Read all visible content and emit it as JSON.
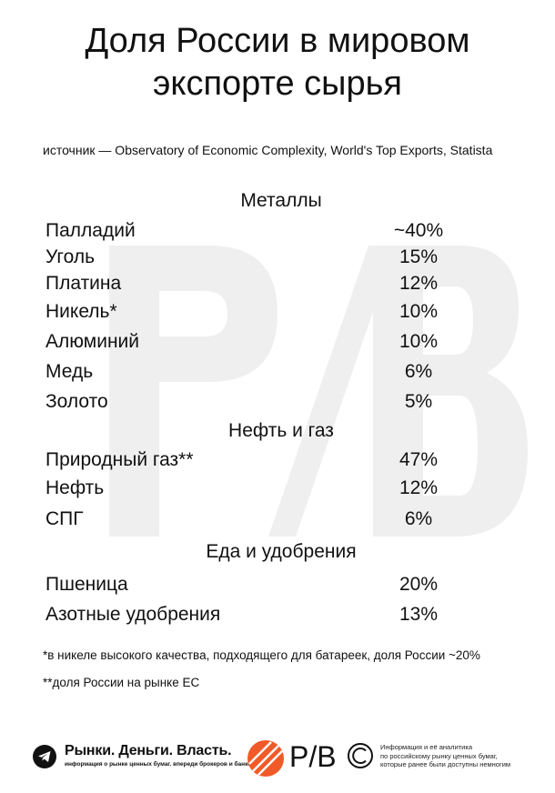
{
  "title_lines": [
    "Доля России в мировом",
    "экспорте сырья"
  ],
  "source": "источник — Observatory of Economic Complexity, World's Top Exports, Statista",
  "sections": [
    {
      "heading": "Металлы",
      "rows": [
        {
          "name": "Палладий",
          "value": "~40%"
        },
        {
          "name": "Уголь",
          "value": "15%"
        },
        {
          "name": "Платина",
          "value": "12%"
        },
        {
          "name": "Никель*",
          "value": "10%"
        },
        {
          "name": "Алюминий",
          "value": "10%"
        },
        {
          "name": "Медь",
          "value": "6%"
        },
        {
          "name": "Золото",
          "value": "5%"
        }
      ]
    },
    {
      "heading": "Нефть и газ",
      "rows": [
        {
          "name": "Природный газ**",
          "value": "47%"
        },
        {
          "name": "Нефть",
          "value": "12%"
        },
        {
          "name": "СПГ",
          "value": "6%"
        }
      ]
    },
    {
      "heading": "Еда и удобрения",
      "rows": [
        {
          "name": "Пшеница",
          "value": "20%"
        },
        {
          "name": "Азотные удобрения",
          "value": "13%"
        }
      ]
    }
  ],
  "notes": [
    "*в никеле высокого качества, подходящего для батареек, доля России ~20%",
    "**доля России на рынке ЕС"
  ],
  "footer": {
    "brand_title": "Рынки. Деньги. Власть.",
    "brand_subtitle": "информация о рынке ценных бумаг. впереди брокеров и банков.",
    "logo_text": "Р/В",
    "info_lines": [
      "Информация и её аналитика",
      "по российскому рынку ценных бумаг,",
      "которые ранее были доступны немногим"
    ],
    "icons": {
      "telegram": "telegram-icon",
      "copyright": "copyright-icon"
    },
    "accent_color": "#f05a28"
  }
}
